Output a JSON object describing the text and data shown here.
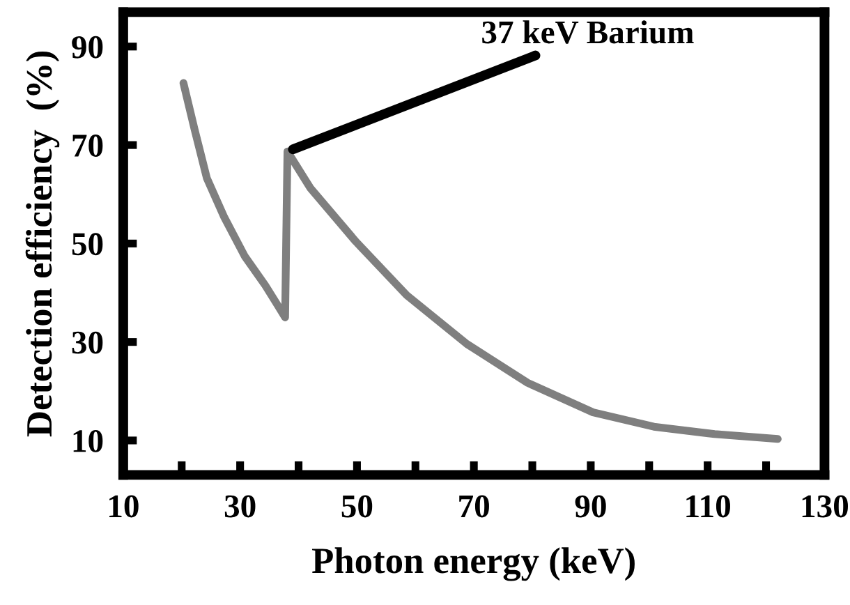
{
  "chart_data": {
    "type": "line",
    "xlabel": "Photon energy (keV)",
    "ylabel": "Detection efficiency  (%)",
    "x": [
      20.3,
      22.2,
      24.3,
      27.3,
      30.8,
      34.3,
      36.4,
      37.7,
      38.1,
      42,
      49.8,
      58.5,
      68.8,
      79.2,
      90.4,
      100.8,
      111.2,
      122
    ],
    "series": [
      {
        "color": "#7f7f7f",
        "values": [
          82.6,
          73.2,
          63.3,
          55.3,
          47.4,
          41.5,
          37.5,
          35,
          68.7,
          61.3,
          50.4,
          39.5,
          29.6,
          21.7,
          15.7,
          12.8,
          11.3,
          10.3
        ]
      }
    ],
    "xlim": [
      10,
      130
    ],
    "xticks": [
      10,
      {
        "value": 20,
        "label": null
      },
      30,
      {
        "value": 40,
        "label": null
      },
      50,
      {
        "value": 60,
        "label": null
      },
      70,
      {
        "value": 80,
        "label": null
      },
      90,
      {
        "value": 100,
        "label": null
      },
      110,
      {
        "value": 120,
        "label": null
      },
      130
    ],
    "ylim": [
      3,
      97
    ],
    "yticks": [
      10,
      30,
      50,
      70,
      90
    ],
    "annotations": [
      {
        "text": "37 keV Barium",
        "x": 38.1,
        "y": 68.7
      }
    ],
    "grid": false,
    "legend": false,
    "marker": "none",
    "line_style": "solid"
  }
}
